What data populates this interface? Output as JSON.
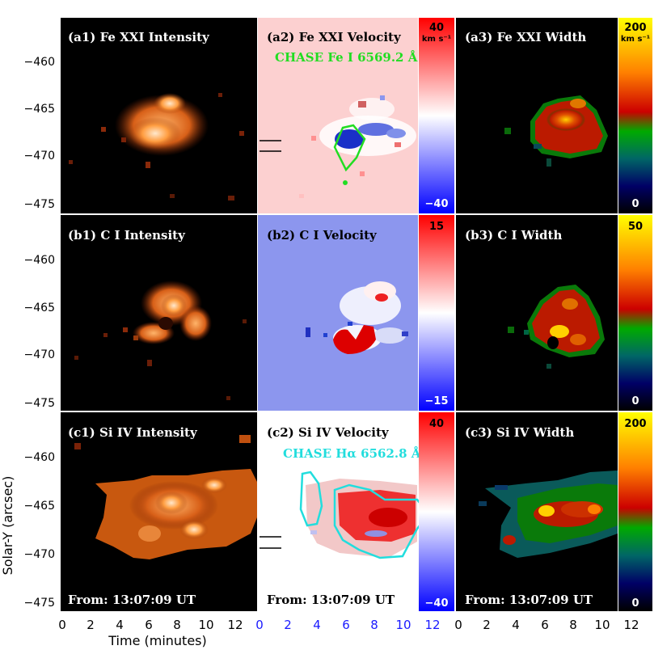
{
  "figure": {
    "panels": [
      {
        "id": "a1",
        "title": "(a1) Fe XXI Intensity",
        "kind": "intensity"
      },
      {
        "id": "a2",
        "title": "(a2) Fe XXI Velocity",
        "kind": "velocity",
        "overlay_label": "CHASE Fe I 6569.2 Å",
        "overlay_color": "#22dd22"
      },
      {
        "id": "a3",
        "title": "(a3) Fe XXI Width",
        "kind": "width"
      },
      {
        "id": "b1",
        "title": "(b1) C I Intensity",
        "kind": "intensity"
      },
      {
        "id": "b2",
        "title": "(b2) C I Velocity",
        "kind": "velocity"
      },
      {
        "id": "b3",
        "title": "(b3) C I Width",
        "kind": "width"
      },
      {
        "id": "c1",
        "title": "(c1) Si IV Intensity",
        "kind": "intensity",
        "from_label": "From: 13:07:09 UT"
      },
      {
        "id": "c2",
        "title": "(c2) Si IV Velocity",
        "kind": "velocity",
        "from_label": "From: 13:07:09 UT",
        "overlay_label": "CHASE Hα 6562.8 Å",
        "overlay_color": "#22dddd"
      },
      {
        "id": "c3",
        "title": "(c3) Si IV Width",
        "kind": "width",
        "from_label": "From: 13:07:09 UT"
      }
    ],
    "colorbars": {
      "a_vel": {
        "top": "40",
        "bottom": "−40",
        "unit": "km s⁻¹"
      },
      "a_width": {
        "top": "200",
        "bottom": "0",
        "unit": "km s⁻¹"
      },
      "b_vel": {
        "top": "15",
        "bottom": "−15"
      },
      "b_width": {
        "top": "50",
        "bottom": "0"
      },
      "c_vel": {
        "top": "40",
        "bottom": "−40"
      },
      "c_width": {
        "top": "200",
        "bottom": "0"
      }
    },
    "y_axis": {
      "label": "Solar-Y (arcsec)",
      "ticks": [
        "−460",
        "−465",
        "−470",
        "−475"
      ]
    },
    "x_axis": {
      "label": "Time (minutes)",
      "ticks": [
        "0",
        "2",
        "4",
        "6",
        "8",
        "10",
        "12"
      ]
    },
    "colors": {
      "velocity_axis_ticks": "#1a1aff",
      "background": "#000000",
      "velocity_background_a": "#fcd0d0",
      "velocity_background_b": "#8c96ee"
    }
  }
}
